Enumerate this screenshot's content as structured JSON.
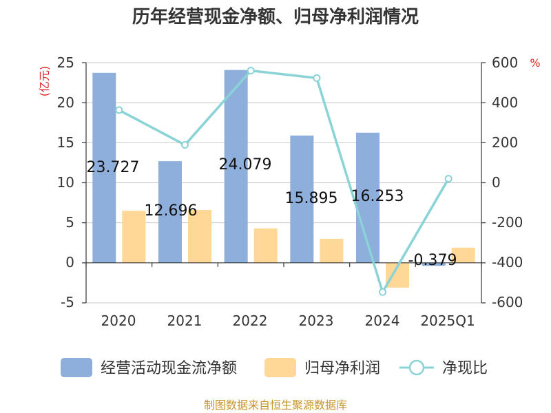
{
  "chart_data": {
    "type": "bar",
    "title": "历年经营现金净额、归母净利润情况",
    "categories": [
      "2020",
      "2021",
      "2022",
      "2023",
      "2024",
      "2025Q1"
    ],
    "series": [
      {
        "name": "经营活动现金流净额",
        "kind": "bar",
        "axis": "left",
        "color": "#8eaedb",
        "values": [
          23.727,
          12.696,
          24.079,
          15.895,
          16.253,
          -0.379
        ]
      },
      {
        "name": "归母净利润",
        "kind": "bar",
        "axis": "left",
        "color": "#ffd797",
        "values": [
          6.5,
          6.6,
          4.3,
          3.0,
          -3.1,
          1.9
        ]
      },
      {
        "name": "净现比",
        "kind": "line",
        "axis": "right",
        "color": "#8ad3d6",
        "values": [
          363,
          189,
          560,
          523,
          -546,
          20
        ]
      }
    ],
    "data_labels": [
      "23.727",
      "12.696",
      "24.079",
      "15.895",
      "16.253",
      "-0.379"
    ],
    "left_axis": {
      "unit": "(亿元)",
      "ylim": [
        -5,
        25
      ],
      "ticks": [
        "25",
        "20",
        "15",
        "10",
        "5",
        "0",
        "-5"
      ]
    },
    "right_axis": {
      "unit": "%",
      "ylim": [
        -600,
        600
      ],
      "ticks": [
        "600",
        "400",
        "200",
        "0",
        "-200",
        "-400",
        "-600"
      ]
    },
    "legend": [
      "经营活动现金流净额",
      "归母净利润",
      "净现比"
    ],
    "legend_position": "bottom",
    "source": "制图数据来自恒生聚源数据库"
  }
}
